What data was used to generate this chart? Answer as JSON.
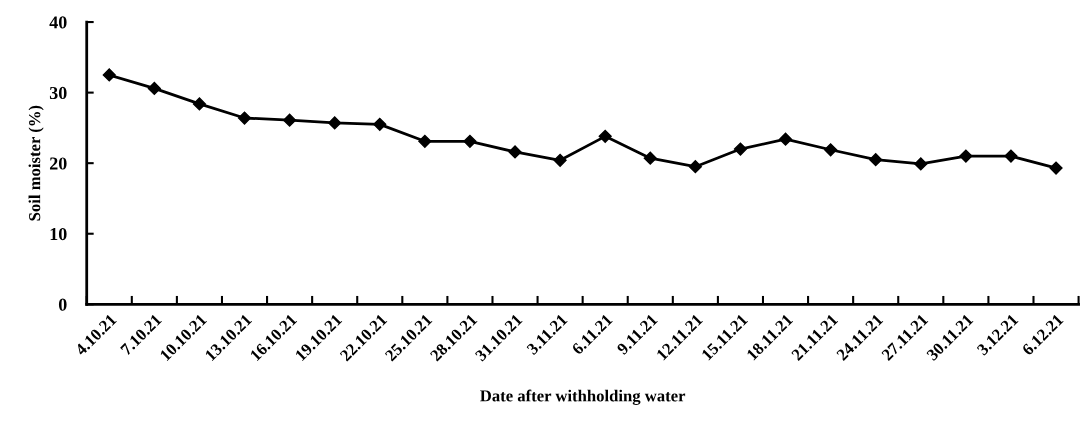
{
  "chart_data": {
    "type": "line",
    "xlabel": "Date after withholding water",
    "ylabel": "Soil moister (%)",
    "categories": [
      "4.10.21",
      "7.10.21",
      "10.10.21",
      "13.10.21",
      "16.10.21",
      "19.10.21",
      "22.10.21",
      "25.10.21",
      "28.10.21",
      "31.10.21",
      "3.11.21",
      "6.11.21",
      "9.11.21",
      "12.11.21",
      "15.11.21",
      "18.11.21",
      "21.11.21",
      "24.11.21",
      "27.11.21",
      "30.11.21",
      "3.12.21",
      "6.12.21"
    ],
    "series": [
      {
        "color": "#000000",
        "values": [
          32.5,
          30.6,
          28.4,
          26.4,
          26.1,
          25.7,
          25.5,
          23.1,
          23.1,
          21.6,
          20.4,
          23.8,
          20.7,
          19.5,
          22.0,
          23.4,
          21.9,
          20.5,
          19.9,
          21.0,
          21.0,
          19.3
        ]
      }
    ],
    "ylim": [
      0,
      40
    ],
    "yticks": [
      0,
      10,
      20,
      30,
      40
    ],
    "grid": false,
    "legend": false,
    "marker": "diamond",
    "line_style": "solid"
  }
}
